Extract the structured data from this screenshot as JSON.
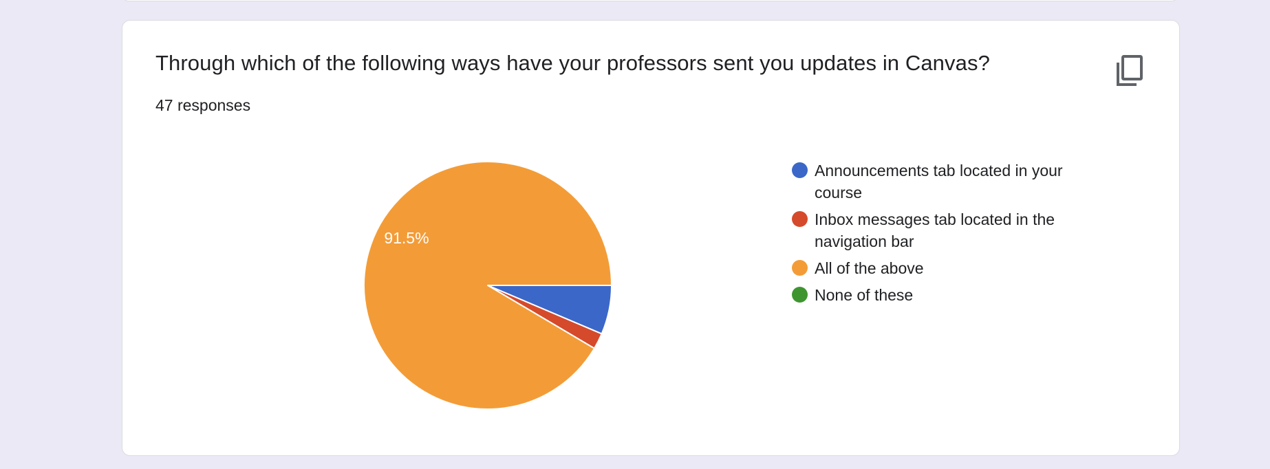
{
  "card": {
    "title": "Through which of the following ways have your professors sent you updates in Canvas?",
    "responses_text": "47 responses",
    "copy_icon": "copy-icon"
  },
  "chart_data": {
    "type": "pie",
    "title": "",
    "legend_position": "right",
    "slices": [
      {
        "label": "Announcements tab located in your course",
        "value": 6.4,
        "color": "#3b67c8",
        "data_label": ""
      },
      {
        "label": "Inbox messages tab located in the navigation bar",
        "value": 2.1,
        "color": "#d54a2b",
        "data_label": ""
      },
      {
        "label": "All of the above",
        "value": 91.5,
        "color": "#f39c37",
        "data_label": "91.5%"
      },
      {
        "label": "None of these",
        "value": 0,
        "color": "#3e9530",
        "data_label": ""
      }
    ]
  }
}
